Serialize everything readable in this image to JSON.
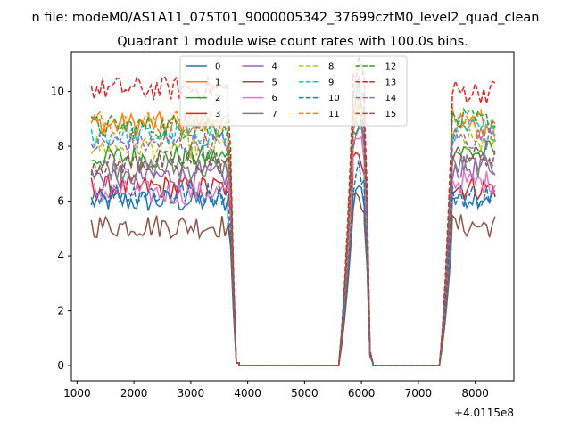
{
  "suptitle": "n file: modeM0/AS1A11_075T01_9000005342_37699cztM0_level2_quad_clean",
  "chart_data": {
    "type": "line",
    "title": "Quadrant 1 module wise count rates with 100.0s bins.",
    "xlabel": "",
    "ylabel": "",
    "x_offset_label": "+4.0115e8",
    "xlim": [
      900,
      8680
    ],
    "ylim": [
      -0.55,
      11.45
    ],
    "xticks": [
      1000,
      2000,
      3000,
      4000,
      5000,
      6000,
      7000,
      8000
    ],
    "yticks": [
      0,
      2,
      4,
      6,
      8,
      10
    ],
    "grid": false,
    "legend_location": "upper center",
    "segments": [
      {
        "start": 1250,
        "end": 3650,
        "behavior": "active"
      },
      {
        "start": 3650,
        "end": 3850,
        "behavior": "drop"
      },
      {
        "start": 3850,
        "end": 5600,
        "behavior": "zero"
      },
      {
        "start": 5600,
        "end": 5850,
        "behavior": "rise"
      },
      {
        "start": 5850,
        "end": 6050,
        "behavior": "active"
      },
      {
        "start": 6050,
        "end": 6200,
        "behavior": "drop"
      },
      {
        "start": 6200,
        "end": 7370,
        "behavior": "zero"
      },
      {
        "start": 7370,
        "end": 7600,
        "behavior": "rise"
      },
      {
        "start": 7600,
        "end": 8380,
        "behavior": "active"
      }
    ],
    "series": [
      {
        "name": "0",
        "color": "#1f77b4",
        "dash": "solid",
        "level1": 6.0,
        "level2": 6.0,
        "level3": 6.2
      },
      {
        "name": "1",
        "color": "#ff7f0e",
        "dash": "solid",
        "level1": 8.8,
        "level2": 8.6,
        "level3": 8.6
      },
      {
        "name": "2",
        "color": "#2ca02c",
        "dash": "solid",
        "level1": 7.6,
        "level2": 8.4,
        "level3": 7.8
      },
      {
        "name": "3",
        "color": "#d62728",
        "dash": "solid",
        "level1": 6.5,
        "level2": 7.3,
        "level3": 6.5
      },
      {
        "name": "4",
        "color": "#9467bd",
        "dash": "solid",
        "level1": 6.9,
        "level2": 8.0,
        "level3": 7.2
      },
      {
        "name": "5",
        "color": "#8c564b",
        "dash": "solid",
        "level1": 5.1,
        "level2": 5.8,
        "level3": 5.1
      },
      {
        "name": "6",
        "color": "#e377c2",
        "dash": "solid",
        "level1": 6.3,
        "level2": 7.8,
        "level3": 6.7
      },
      {
        "name": "7",
        "color": "#7f7f7f",
        "dash": "solid",
        "level1": 7.2,
        "level2": 8.4,
        "level3": 7.3
      },
      {
        "name": "8",
        "color": "#bcbd22",
        "dash": "dashed",
        "level1": 8.0,
        "level2": 8.8,
        "level3": 8.2
      },
      {
        "name": "9",
        "color": "#17becf",
        "dash": "dashed",
        "level1": 8.4,
        "level2": 9.6,
        "level3": 8.6
      },
      {
        "name": "10",
        "color": "#1f77b4",
        "dash": "dashed",
        "level1": 6.3,
        "level2": 6.6,
        "level3": 6.2
      },
      {
        "name": "11",
        "color": "#ff7f0e",
        "dash": "dashed",
        "level1": 8.9,
        "level2": 9.3,
        "level3": 9.0
      },
      {
        "name": "12",
        "color": "#2ca02c",
        "dash": "dashed",
        "level1": 8.7,
        "level2": 9.6,
        "level3": 8.9
      },
      {
        "name": "13",
        "color": "#d62728",
        "dash": "dashed",
        "level1": 10.1,
        "level2": 10.5,
        "level3": 10.0
      },
      {
        "name": "14",
        "color": "#9467bd",
        "dash": "dashed",
        "level1": 8.1,
        "level2": 9.0,
        "level3": 8.3
      },
      {
        "name": "15",
        "color": "#8c564b",
        "dash": "dashed",
        "level1": 7.4,
        "level2": 8.9,
        "level3": 7.6
      }
    ]
  }
}
